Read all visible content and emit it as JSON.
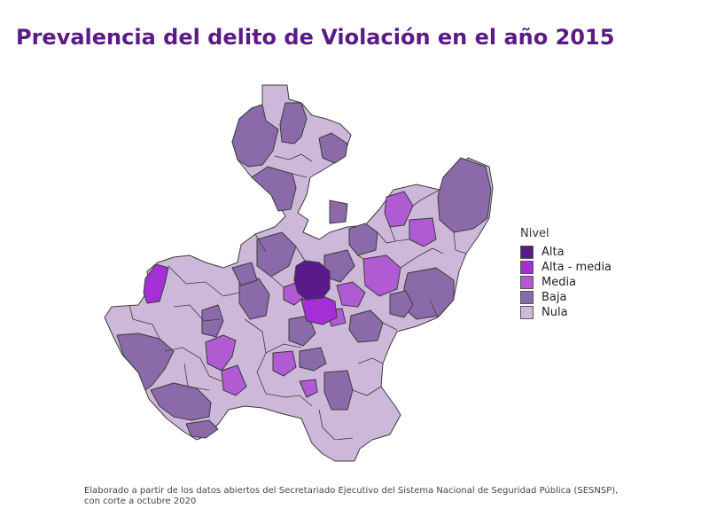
{
  "title": "Prevalencia del delito de Violación en el año 2015",
  "map": {
    "fill_colors": {
      "alta": "#5a1a8a",
      "alta_media": "#a52fd6",
      "media": "#b05ad4",
      "baja": "#8a6aa8",
      "nula": "#cdb8d9"
    },
    "border_color": "#3b3b3b"
  },
  "legend": {
    "title": "Nivel",
    "items": [
      {
        "label": "Alta",
        "color": "#5a1a8a"
      },
      {
        "label": "Alta - media",
        "color": "#a52fd6"
      },
      {
        "label": "Media",
        "color": "#b05ad4"
      },
      {
        "label": "Baja",
        "color": "#8a6aa8"
      },
      {
        "label": "Nula",
        "color": "#cdb8d9"
      }
    ]
  },
  "caption": {
    "line1": "Elaborado a partir de los datos abiertos del Secretariado Ejecutivo del Sistema Nacional de Seguridad Pública (SESNSP),",
    "line2": "con corte a octubre 2020"
  }
}
